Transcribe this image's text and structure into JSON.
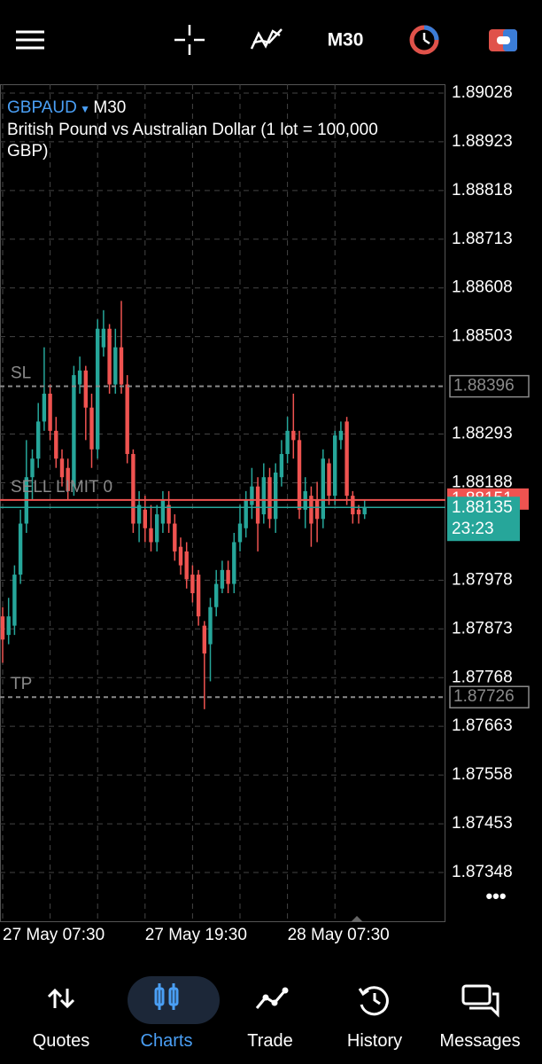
{
  "header": {
    "timeframe": "M30"
  },
  "chart_data": {
    "type": "candlestick",
    "symbol": "GBPAUD",
    "timeframe": "M30",
    "description": "British Pound vs Australian Dollar (1 lot = 100,000 GBP)",
    "categories": [
      "27 May 07:30",
      null,
      null,
      null,
      null,
      null,
      null,
      null,
      null,
      null,
      null,
      null,
      null,
      null,
      null,
      null,
      null,
      null,
      null,
      null,
      null,
      null,
      null,
      null,
      "27 May 19:30",
      null,
      null,
      null,
      null,
      null,
      null,
      null,
      null,
      null,
      null,
      null,
      null,
      null,
      null,
      null,
      null,
      null,
      null,
      null,
      null,
      null,
      null,
      null,
      "28 May 07:30",
      null,
      null,
      null,
      null,
      null,
      null,
      null,
      null,
      null,
      null,
      null,
      null,
      null
    ],
    "open": [
      1.879,
      1.8786,
      1.8788,
      1.8799,
      1.881,
      1.882,
      1.8824,
      1.8832,
      1.8838,
      1.883,
      1.8824,
      1.8822,
      1.8818,
      1.884,
      1.8843,
      1.8835,
      1.8826,
      1.8848,
      1.8852,
      1.884,
      1.8848,
      1.884,
      1.8825,
      1.881,
      1.8813,
      1.8809,
      1.8806,
      1.881,
      1.8814,
      1.881,
      1.8805,
      1.8804,
      1.8799,
      1.8799,
      1.8788,
      1.8784,
      1.8792,
      1.8796,
      1.88,
      1.8797,
      1.8806,
      1.8809,
      1.8814,
      1.8818,
      1.8812,
      1.882,
      1.8811,
      1.882,
      1.8825,
      1.883,
      1.8828,
      1.8813,
      1.8816,
      1.8815,
      1.8811,
      1.8823,
      1.8816,
      1.8828,
      1.8832,
      1.8816,
      1.8813,
      1.8812
    ],
    "high": [
      1.8792,
      1.8794,
      1.8801,
      1.8813,
      1.8828,
      1.8826,
      1.8836,
      1.8848,
      1.884,
      1.8833,
      1.8826,
      1.8824,
      1.8844,
      1.8846,
      1.8844,
      1.8838,
      1.8854,
      1.8856,
      1.8853,
      1.8852,
      1.8858,
      1.8842,
      1.8826,
      1.8817,
      1.8816,
      1.8814,
      1.8814,
      1.8817,
      1.8817,
      1.8812,
      1.8807,
      1.8806,
      1.8801,
      1.88,
      1.8789,
      1.8794,
      1.88,
      1.8802,
      1.8802,
      1.8808,
      1.8814,
      1.8817,
      1.8822,
      1.882,
      1.8823,
      1.8822,
      1.8823,
      1.8828,
      1.8833,
      1.8838,
      1.883,
      1.882,
      1.8818,
      1.8819,
      1.8826,
      1.8824,
      1.883,
      1.8832,
      1.8833,
      1.8817,
      1.8814,
      1.8815
    ],
    "low": [
      1.878,
      1.8784,
      1.8786,
      1.8797,
      1.8808,
      1.8815,
      1.8822,
      1.883,
      1.8828,
      1.8822,
      1.8818,
      1.8815,
      1.8816,
      1.8838,
      1.8828,
      1.8822,
      1.8824,
      1.8846,
      1.8838,
      1.8838,
      1.8838,
      1.8823,
      1.8808,
      1.8806,
      1.8806,
      1.8804,
      1.8804,
      1.8808,
      1.8808,
      1.8802,
      1.8799,
      1.8796,
      1.8793,
      1.8788,
      1.877,
      1.8776,
      1.879,
      1.8795,
      1.8795,
      1.8795,
      1.8804,
      1.8807,
      1.8811,
      1.8804,
      1.881,
      1.8809,
      1.8808,
      1.8818,
      1.8823,
      1.8824,
      1.8811,
      1.8809,
      1.8805,
      1.8806,
      1.8809,
      1.8814,
      1.8814,
      1.8826,
      1.8814,
      1.881,
      1.881,
      1.8811
    ],
    "close": [
      1.8785,
      1.879,
      1.8799,
      1.881,
      1.882,
      1.8824,
      1.8832,
      1.8838,
      1.883,
      1.8824,
      1.882,
      1.8817,
      1.8842,
      1.8843,
      1.8835,
      1.8826,
      1.8852,
      1.8852,
      1.884,
      1.8848,
      1.884,
      1.8825,
      1.881,
      1.8814,
      1.8809,
      1.8806,
      1.8812,
      1.8815,
      1.881,
      1.8804,
      1.8801,
      1.8798,
      1.8795,
      1.879,
      1.8782,
      1.8792,
      1.8797,
      1.88,
      1.8797,
      1.8806,
      1.881,
      1.8815,
      1.8818,
      1.881,
      1.882,
      1.8811,
      1.8821,
      1.8825,
      1.883,
      1.8828,
      1.8813,
      1.8817,
      1.881,
      1.8811,
      1.8824,
      1.8816,
      1.8829,
      1.883,
      1.8816,
      1.8812,
      1.8812,
      1.88135
    ],
    "up_color": "#26a69a",
    "down_color": "#ef5350",
    "ylim": [
      1.87241,
      1.89047
    ],
    "yticks": [
      1.89028,
      1.88923,
      1.88818,
      1.88713,
      1.88608,
      1.88503,
      1.88293,
      1.88188,
      1.87978,
      1.87873,
      1.87768,
      1.87663,
      1.87558,
      1.87453,
      1.87348
    ],
    "grid": true,
    "levels": [
      {
        "label": "SL",
        "value": 1.88396,
        "color": "#8a8a8a"
      },
      {
        "label": "TP",
        "value": 1.87726,
        "color": "#8a8a8a"
      },
      {
        "label": "SELL LIMIT 0",
        "value": 1.88151,
        "color": "#ef5350"
      }
    ],
    "bid": {
      "value": 1.88135,
      "countdown": "23:23",
      "color": "#26a69a"
    }
  },
  "nav": {
    "items": [
      "Quotes",
      "Charts",
      "Trade",
      "History",
      "Messages"
    ],
    "active": 1
  }
}
